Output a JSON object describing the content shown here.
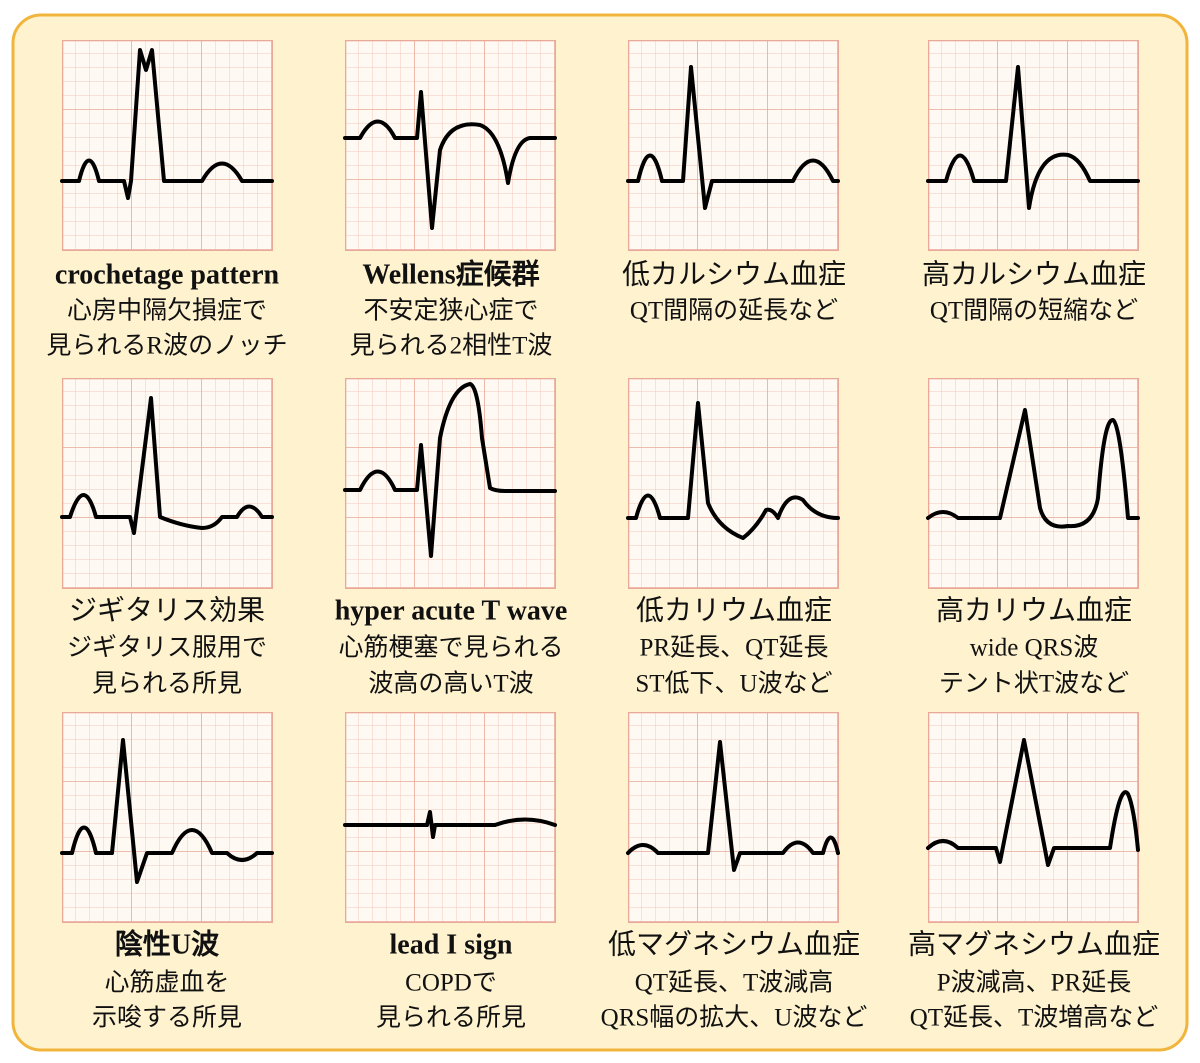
{
  "panels": [
    {
      "title": "crochetage pattern",
      "lines": [
        "心房中隔欠損症で",
        "見られるR波のノッチ"
      ]
    },
    {
      "title": "Wellens症候群",
      "lines": [
        "不安定狭心症で",
        "見られる2相性T波"
      ]
    },
    {
      "title": "低カルシウム血症",
      "lines": [
        "QT間隔の延長など"
      ]
    },
    {
      "title": "高カルシウム血症",
      "lines": [
        "QT間隔の短縮など"
      ]
    },
    {
      "title": "ジギタリス効果",
      "lines": [
        "ジギタリス服用で",
        "見られる所見"
      ]
    },
    {
      "title": "hyper acute T wave",
      "lines": [
        "心筋梗塞で見られる",
        "波高の高いT波"
      ]
    },
    {
      "title": "低カリウム血症",
      "lines": [
        "PR延長、QT延長",
        "ST低下、U波など"
      ]
    },
    {
      "title": "高カリウム血症",
      "lines": [
        "wide QRS波",
        "テント状T波など"
      ]
    },
    {
      "title": "陰性U波",
      "lines": [
        "心筋虚血を",
        "示唆する所見"
      ]
    },
    {
      "title": "lead I sign",
      "lines": [
        "COPDで",
        "見られる所見"
      ]
    },
    {
      "title": "低マグネシウム血症",
      "lines": [
        "QT延長、T波減高",
        "QRS幅の拡大、U波など"
      ]
    },
    {
      "title": "高マグネシウム血症",
      "lines": [
        "P波減高、PR延長",
        "QT延長、T波増高など"
      ]
    }
  ]
}
